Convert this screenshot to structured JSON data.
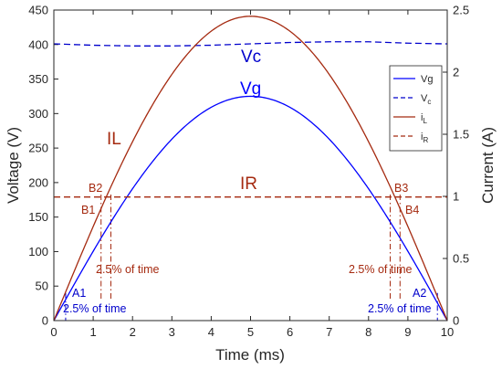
{
  "chart_data": {
    "type": "line",
    "xlabel": "Time (ms)",
    "ylabel_left": "Voltage (V)",
    "ylabel_right": "Current (A)",
    "xlim": [
      0,
      10
    ],
    "ylim_left": [
      0,
      450
    ],
    "ylim_right": [
      0,
      2.5
    ],
    "xticks": [
      "0",
      "1",
      "2",
      "3",
      "4",
      "5",
      "6",
      "7",
      "8",
      "9",
      "10"
    ],
    "yticks_left": [
      "0",
      "50",
      "100",
      "150",
      "200",
      "250",
      "300",
      "350",
      "400",
      "450"
    ],
    "yticks_right": [
      "0",
      "0.5",
      "1",
      "1.5",
      "2",
      "2.5"
    ],
    "grid": false,
    "legend_position": "right",
    "series": [
      {
        "name": "Vg",
        "axis": "left",
        "color": "#0000ff",
        "dash": "solid",
        "x": [
          0,
          0.5,
          1,
          1.5,
          2,
          2.5,
          3,
          3.5,
          4,
          4.5,
          5,
          5.5,
          6,
          6.5,
          7,
          7.5,
          8,
          8.5,
          9,
          9.5,
          10
        ],
        "y": [
          0,
          51,
          100,
          147,
          191,
          230,
          263,
          290,
          309,
          321,
          325,
          321,
          309,
          290,
          263,
          230,
          191,
          147,
          100,
          51,
          0
        ]
      },
      {
        "name": "Vc",
        "axis": "left",
        "color": "#0000cc",
        "dash": "dashed",
        "x": [
          0,
          1,
          2,
          3,
          4,
          5,
          6,
          7,
          8,
          9,
          10
        ],
        "y": [
          401,
          399,
          398,
          398,
          399,
          401,
          403,
          404,
          404,
          402,
          401
        ]
      },
      {
        "name": "iL",
        "axis": "right",
        "color": "#a52a10",
        "dash": "solid",
        "x": [
          0,
          0.5,
          1,
          1.5,
          2,
          2.5,
          3,
          3.5,
          4,
          4.5,
          5,
          5.5,
          6,
          6.5,
          7,
          7.5,
          8,
          8.5,
          9,
          9.5,
          10
        ],
        "y": [
          0,
          0.38,
          0.76,
          1.11,
          1.44,
          1.73,
          1.98,
          2.18,
          2.33,
          2.43,
          2.45,
          2.43,
          2.33,
          2.18,
          1.98,
          1.73,
          1.44,
          1.11,
          0.76,
          0.38,
          0
        ]
      },
      {
        "name": "iR",
        "axis": "right",
        "color": "#a52a10",
        "dash": "dashed",
        "x": [
          0,
          10
        ],
        "y": [
          0.995,
          0.995
        ]
      }
    ],
    "legend": [
      {
        "label": "Vg",
        "sub": "",
        "color": "#0000ff",
        "dash": "solid"
      },
      {
        "label": "V",
        "sub": "c",
        "color": "#0000cc",
        "dash": "dashed"
      },
      {
        "label": "i",
        "sub": "L",
        "color": "#a52a10",
        "dash": "solid"
      },
      {
        "label": "i",
        "sub": "R",
        "color": "#a52a10",
        "dash": "dashed"
      }
    ],
    "annotations": {
      "Vc": "Vc",
      "Vg": "Vg",
      "IL": "IL",
      "IR": "IR",
      "B1": "B1",
      "B2": "B2",
      "B3": "B3",
      "B4": "B4",
      "A1": "A1",
      "A2": "A2",
      "pct_left": "2.5% of time",
      "pct_right": "2.5% of time",
      "pct_a1": "2.5% of time",
      "pct_a2": "2.5% of time"
    },
    "markers": {
      "b_left_x": [
        1.2,
        1.45
      ],
      "b_right_x": [
        8.55,
        8.8
      ],
      "a_left_x": 0.3,
      "a_right_x": 9.75
    }
  }
}
